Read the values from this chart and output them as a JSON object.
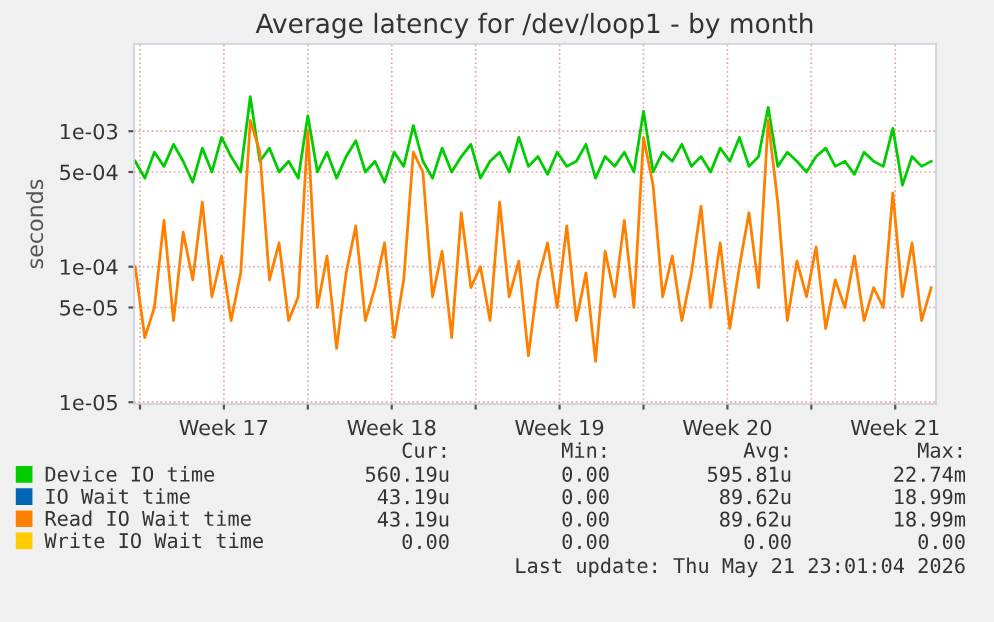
{
  "chart_data": {
    "type": "line",
    "title": "Average latency for /dev/loop1 - by month",
    "ylabel": "seconds",
    "x": [
      "2026-04-19T19:12",
      "2026-04-20T04:48",
      "2026-04-20T14:24",
      "2026-04-21T00:00",
      "2026-04-21T09:36",
      "2026-04-21T19:12",
      "2026-04-22T04:48",
      "2026-04-22T14:24",
      "2026-04-23T00:00",
      "2026-04-23T09:36",
      "2026-04-23T19:12",
      "2026-04-24T04:48",
      "2026-04-24T14:24",
      "2026-04-25T00:00",
      "2026-04-25T09:36",
      "2026-04-25T19:12",
      "2026-04-26T04:48",
      "2026-04-26T14:24",
      "2026-04-27T00:00",
      "2026-04-27T09:36",
      "2026-04-27T19:12",
      "2026-04-28T04:48",
      "2026-04-28T14:24",
      "2026-04-29T00:00",
      "2026-04-29T09:36",
      "2026-04-29T19:12",
      "2026-04-30T04:48",
      "2026-04-30T14:24",
      "2026-05-01T00:00",
      "2026-05-01T09:36",
      "2026-05-01T19:12",
      "2026-05-02T04:48",
      "2026-05-02T14:24",
      "2026-05-03T00:00",
      "2026-05-03T09:36",
      "2026-05-03T19:12",
      "2026-05-04T04:48",
      "2026-05-04T14:24",
      "2026-05-05T00:00",
      "2026-05-05T09:36",
      "2026-05-05T19:12",
      "2026-05-06T04:48",
      "2026-05-06T14:24",
      "2026-05-07T00:00",
      "2026-05-07T09:36",
      "2026-05-07T19:12",
      "2026-05-08T04:48",
      "2026-05-08T14:24",
      "2026-05-09T00:00",
      "2026-05-09T09:36",
      "2026-05-09T19:12",
      "2026-05-10T04:48",
      "2026-05-10T14:24",
      "2026-05-11T00:00",
      "2026-05-11T09:36",
      "2026-05-11T19:12",
      "2026-05-12T04:48",
      "2026-05-12T14:24",
      "2026-05-13T00:00",
      "2026-05-13T09:36",
      "2026-05-13T19:12",
      "2026-05-14T04:48",
      "2026-05-14T14:24",
      "2026-05-15T00:00",
      "2026-05-15T09:36",
      "2026-05-15T19:12",
      "2026-05-16T04:48",
      "2026-05-16T14:24",
      "2026-05-17T00:00",
      "2026-05-17T09:36",
      "2026-05-17T19:12",
      "2026-05-18T04:48",
      "2026-05-18T14:24",
      "2026-05-19T00:00",
      "2026-05-19T09:36",
      "2026-05-19T19:12",
      "2026-05-20T04:48",
      "2026-05-20T14:24",
      "2026-05-21T00:00",
      "2026-05-21T09:36",
      "2026-05-21T19:12",
      "2026-05-22T04:48",
      "2026-05-22T14:24",
      "2026-05-23T00:00"
    ],
    "series": [
      {
        "name": "Device IO time",
        "color": "#00cc00",
        "values": [
          0.0006,
          0.00045,
          0.0007,
          0.00055,
          0.0008,
          0.0006,
          0.00042,
          0.00075,
          0.0005,
          0.0009,
          0.00065,
          0.0005,
          0.0018,
          0.0006,
          0.00075,
          0.0005,
          0.0006,
          0.00045,
          0.0013,
          0.0005,
          0.0007,
          0.00045,
          0.00065,
          0.00085,
          0.0005,
          0.0006,
          0.00042,
          0.0007,
          0.00055,
          0.0011,
          0.0006,
          0.00045,
          0.00075,
          0.0005,
          0.00065,
          0.0008,
          0.00045,
          0.0006,
          0.0007,
          0.0005,
          0.0009,
          0.00055,
          0.00065,
          0.00048,
          0.0007,
          0.00055,
          0.0006,
          0.0008,
          0.00045,
          0.00065,
          0.00055,
          0.0007,
          0.0005,
          0.0014,
          0.0005,
          0.0007,
          0.0006,
          0.0008,
          0.00055,
          0.00065,
          0.0005,
          0.00075,
          0.0006,
          0.0009,
          0.00055,
          0.00065,
          0.0015,
          0.00055,
          0.0007,
          0.0006,
          0.0005,
          0.00065,
          0.00075,
          0.00055,
          0.0006,
          0.00048,
          0.0007,
          0.0006,
          0.00055,
          0.00105,
          0.0004,
          0.00065,
          0.00055,
          0.0006
        ]
      },
      {
        "name": "IO Wait time",
        "color": "#0066b3",
        "values": [
          null,
          null,
          null,
          null,
          null,
          null,
          null,
          null,
          null,
          null,
          null,
          null,
          null,
          null,
          null,
          null,
          null,
          null,
          null,
          null,
          null,
          null,
          null,
          null,
          null,
          null,
          null,
          null,
          null,
          null,
          null,
          null,
          null,
          null,
          null,
          null,
          null,
          null,
          null,
          null,
          null,
          null,
          null,
          null,
          null,
          null,
          null,
          null,
          null,
          null,
          null,
          null,
          null,
          null,
          null,
          null,
          null,
          null,
          null,
          null,
          null,
          null,
          null,
          null,
          null,
          null,
          null,
          null,
          null,
          null,
          null,
          null,
          null,
          null,
          null,
          null,
          null,
          null,
          null,
          null,
          null,
          null,
          null,
          null
        ]
      },
      {
        "name": "Read IO Wait time",
        "color": "#ff8000",
        "values": [
          0.0001,
          3e-05,
          5e-05,
          0.00022,
          4e-05,
          0.00018,
          8e-05,
          0.0003,
          6e-05,
          0.00012,
          4e-05,
          9e-05,
          0.0012,
          0.0007,
          8e-05,
          0.00015,
          4e-05,
          6e-05,
          0.001,
          5e-05,
          0.00012,
          2.5e-05,
          9e-05,
          0.0002,
          4e-05,
          7e-05,
          0.00015,
          3e-05,
          8e-05,
          0.0007,
          0.0005,
          6e-05,
          0.00013,
          3e-05,
          0.00025,
          7e-05,
          0.0001,
          4e-05,
          0.0003,
          6e-05,
          0.00011,
          2.2e-05,
          8e-05,
          0.00015,
          5e-05,
          0.0002,
          4e-05,
          9e-05,
          2e-05,
          0.00013,
          6e-05,
          0.00022,
          5e-05,
          0.0009,
          0.0004,
          6e-05,
          0.00012,
          4e-05,
          9e-05,
          0.00028,
          5e-05,
          0.00015,
          3.5e-05,
          0.0001,
          0.00025,
          7e-05,
          0.0012,
          0.0003,
          4e-05,
          0.00011,
          6e-05,
          0.00014,
          3.5e-05,
          8e-05,
          5e-05,
          0.00012,
          4e-05,
          7e-05,
          5e-05,
          0.00035,
          6e-05,
          0.00015,
          4e-05,
          7e-05
        ]
      },
      {
        "name": "Write IO Wait time",
        "color": "#ffcc00",
        "values": [
          null,
          null,
          null,
          null,
          null,
          null,
          null,
          null,
          null,
          null,
          null,
          null,
          null,
          null,
          null,
          null,
          null,
          null,
          null,
          null,
          null,
          null,
          null,
          null,
          null,
          null,
          null,
          null,
          null,
          null,
          null,
          null,
          null,
          null,
          null,
          null,
          null,
          null,
          null,
          null,
          null,
          null,
          null,
          null,
          null,
          null,
          null,
          null,
          null,
          null,
          null,
          null,
          null,
          null,
          null,
          null,
          null,
          null,
          null,
          null,
          null,
          null,
          null,
          null,
          null,
          null,
          null,
          null,
          null,
          null,
          null,
          null,
          null,
          null,
          null,
          null,
          null,
          null,
          null,
          null,
          null,
          null,
          null,
          null
        ]
      }
    ],
    "log": "y",
    "ylim": [
      9.7e-06,
      0.0044
    ],
    "yticks": [
      {
        "value": 1e-05,
        "label": "1e-05"
      },
      {
        "value": 5e-05,
        "label": "5e-05"
      },
      {
        "value": 0.0001,
        "label": "1e-04"
      },
      {
        "value": 0.0005,
        "label": "5e-04"
      },
      {
        "value": 0.001,
        "label": "1e-03"
      }
    ],
    "xlim": [
      "2026-04-19T18:00",
      "2026-05-23T04:48"
    ],
    "xticks": [
      {
        "value": "2026-04-20",
        "label": null
      },
      {
        "value": "2026-04-23T12:00",
        "label": "Week 17"
      },
      {
        "value": "2026-04-27",
        "label": null
      },
      {
        "value": "2026-04-30T12:00",
        "label": "Week 18"
      },
      {
        "value": "2026-05-04",
        "label": null
      },
      {
        "value": "2026-05-07T12:00",
        "label": "Week 19"
      },
      {
        "value": "2026-05-11",
        "label": null
      },
      {
        "value": "2026-05-14T12:00",
        "label": "Week 20"
      },
      {
        "value": "2026-05-18",
        "label": null
      },
      {
        "value": "2026-05-21T12:00",
        "label": "Week 21"
      }
    ],
    "grid": true,
    "legend": "bottom",
    "marker": "none",
    "line_style": "solid",
    "annotations": [
      "Cur:",
      "Min:",
      "Avg:",
      "Max:",
      "560.19u",
      "0.00",
      "595.81u",
      "22.74m",
      "43.19u",
      "0.00",
      "89.62u",
      "18.99m",
      "43.19u",
      "0.00",
      "89.62u",
      "18.99m",
      "0.00",
      "0.00",
      "0.00",
      "0.00",
      "Last update: Thu May 21 23:01:04 2026"
    ]
  }
}
